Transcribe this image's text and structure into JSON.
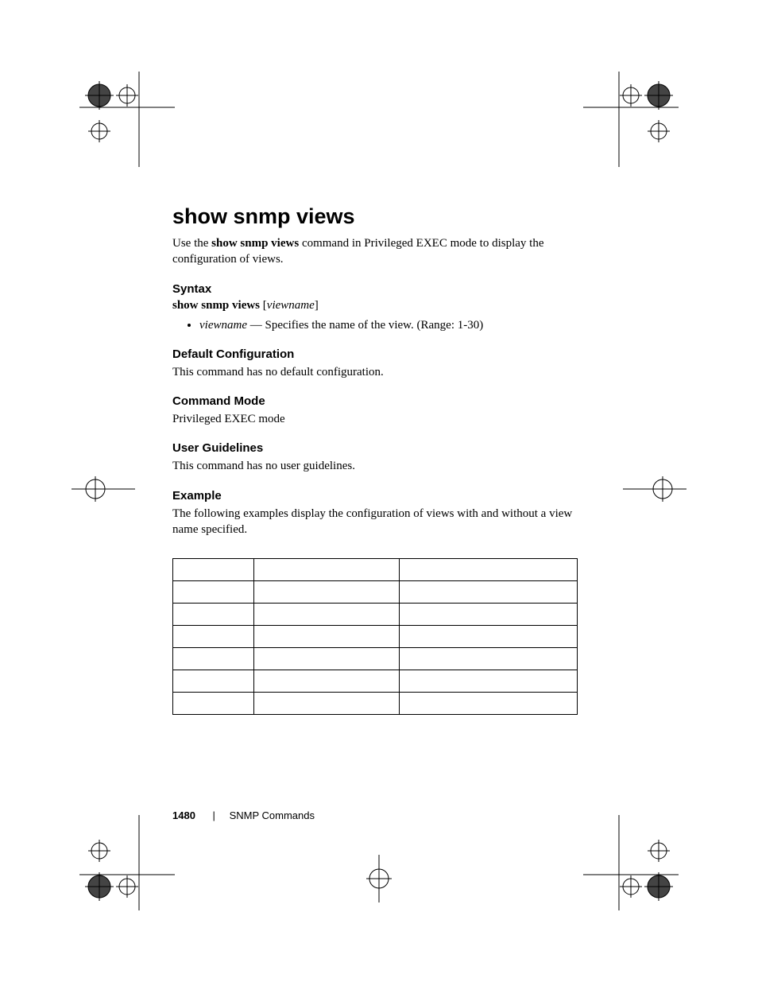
{
  "title": "show snmp views",
  "intro_prefix": "Use the ",
  "intro_bold": "show snmp views",
  "intro_suffix": " command in Privileged EXEC mode to display the configuration of views.",
  "sections": {
    "syntax": {
      "heading": "Syntax",
      "line_bold": "show snmp views",
      "line_bracket_open": " [",
      "line_ital": "viewname",
      "line_bracket_close": "]",
      "bullet_ital": "viewname",
      "bullet_rest": " — Specifies the name of the view. (Range: 1-30)"
    },
    "default_cfg": {
      "heading": "Default Configuration",
      "body": "This command has no default configuration."
    },
    "cmd_mode": {
      "heading": "Command Mode",
      "body": "Privileged EXEC mode"
    },
    "guidelines": {
      "heading": "User Guidelines",
      "body": "This command has no user guidelines."
    },
    "example": {
      "heading": "Example",
      "body": "The following examples display the configuration of views with and without a view name specified."
    }
  },
  "table": {
    "rows": 7,
    "cols": 3
  },
  "footer": {
    "page_number": "1480",
    "separator": "|",
    "chapter": "SNMP Commands"
  },
  "colors": {
    "text": "#000000",
    "background": "#ffffff",
    "border": "#000000"
  }
}
